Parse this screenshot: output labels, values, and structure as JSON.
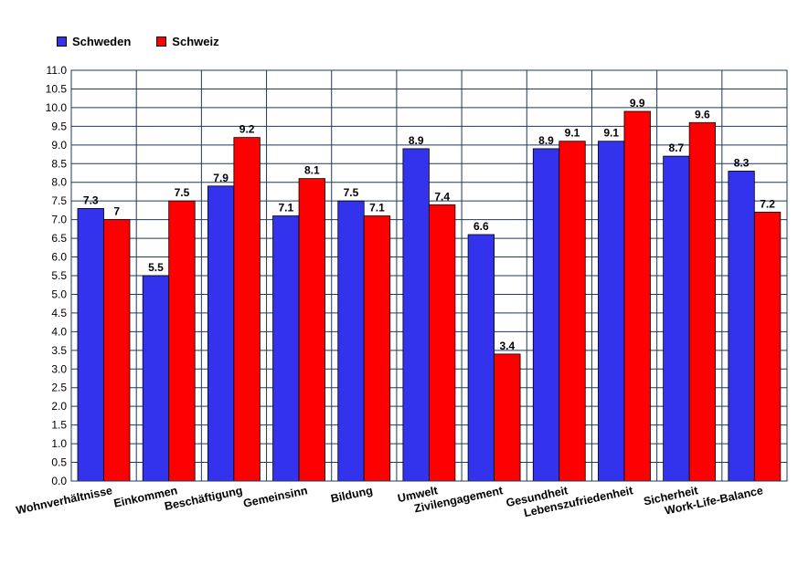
{
  "legend": {
    "series_0": "Schweden",
    "series_1": "Schweiz"
  },
  "chart_data": {
    "type": "bar",
    "title": "",
    "xlabel": "",
    "ylabel": "",
    "ylim": [
      0,
      11
    ],
    "ytick_step": 0.5,
    "grid": true,
    "legend_position": "top-left",
    "categories": [
      "Wohnverhältnisse",
      "Einkommen",
      "Beschäftigung",
      "Gemeinsinn",
      "Bildung",
      "Umwelt",
      "Zivilengagement",
      "Gesundheit",
      "Lebenszufriedenheit",
      "Sicherheit",
      "Work-Life-Balance"
    ],
    "series": [
      {
        "name": "Schweden",
        "color": "#3333ee",
        "values": [
          7.3,
          5.5,
          7.9,
          7.1,
          7.5,
          8.9,
          6.6,
          8.9,
          9.1,
          8.7,
          8.3
        ],
        "labels": [
          "7.3",
          "5.5",
          "7.9",
          "7.1",
          "7.5",
          "8.9",
          "6.6",
          "8.9",
          "9.1",
          "8.7",
          "8.3"
        ]
      },
      {
        "name": "Schweiz",
        "color": "#ff0000",
        "values": [
          7.0,
          7.5,
          9.2,
          8.1,
          7.1,
          7.4,
          3.4,
          9.1,
          9.9,
          9.6,
          7.2
        ],
        "labels": [
          "7",
          "7.5",
          "9.2",
          "8.1",
          "7.1",
          "7.4",
          "3.4",
          "9.1",
          "9.9",
          "9.6",
          "7.2"
        ]
      }
    ]
  }
}
